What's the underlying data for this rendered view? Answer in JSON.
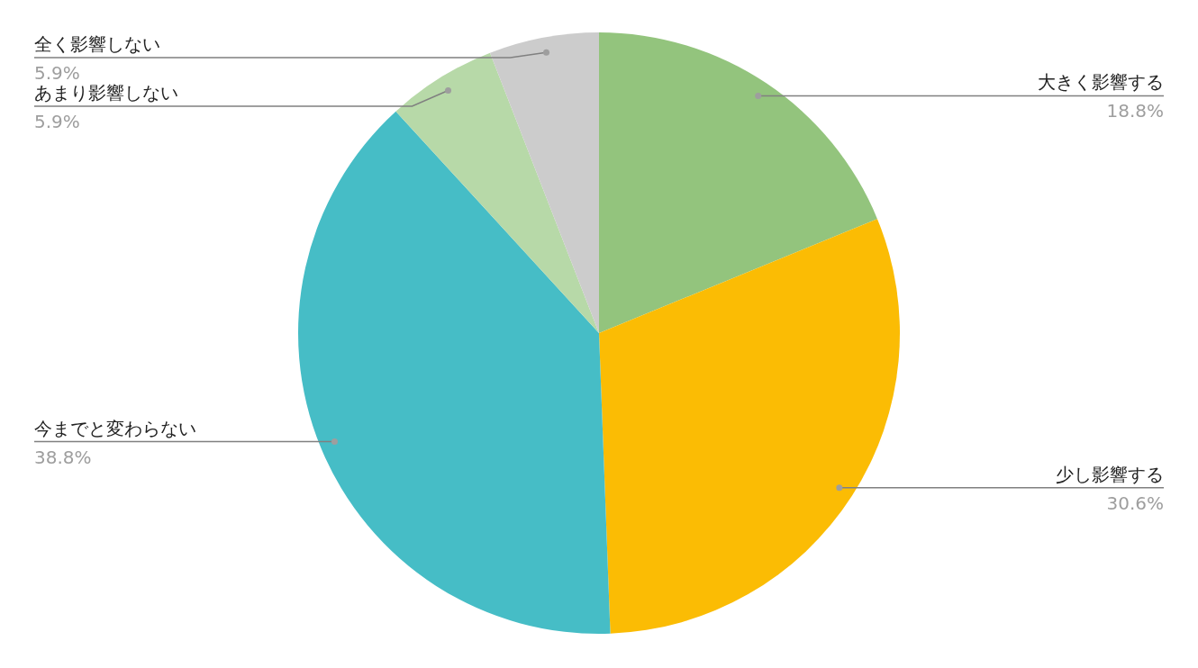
{
  "chart_data": {
    "type": "pie",
    "categories": [
      "大きく影響する",
      "少し影響する",
      "今までと変わらない",
      "あまり影響しない",
      "全く影響しない"
    ],
    "values": [
      18.8,
      30.6,
      38.8,
      5.9,
      5.9
    ],
    "colors": [
      "#93c47d",
      "#fbbc04",
      "#46bdc6",
      "#b7d9a8",
      "#cccccc"
    ],
    "value_labels": [
      "18.8%",
      "30.6%",
      "38.8%",
      "5.9%",
      "5.9%"
    ]
  }
}
